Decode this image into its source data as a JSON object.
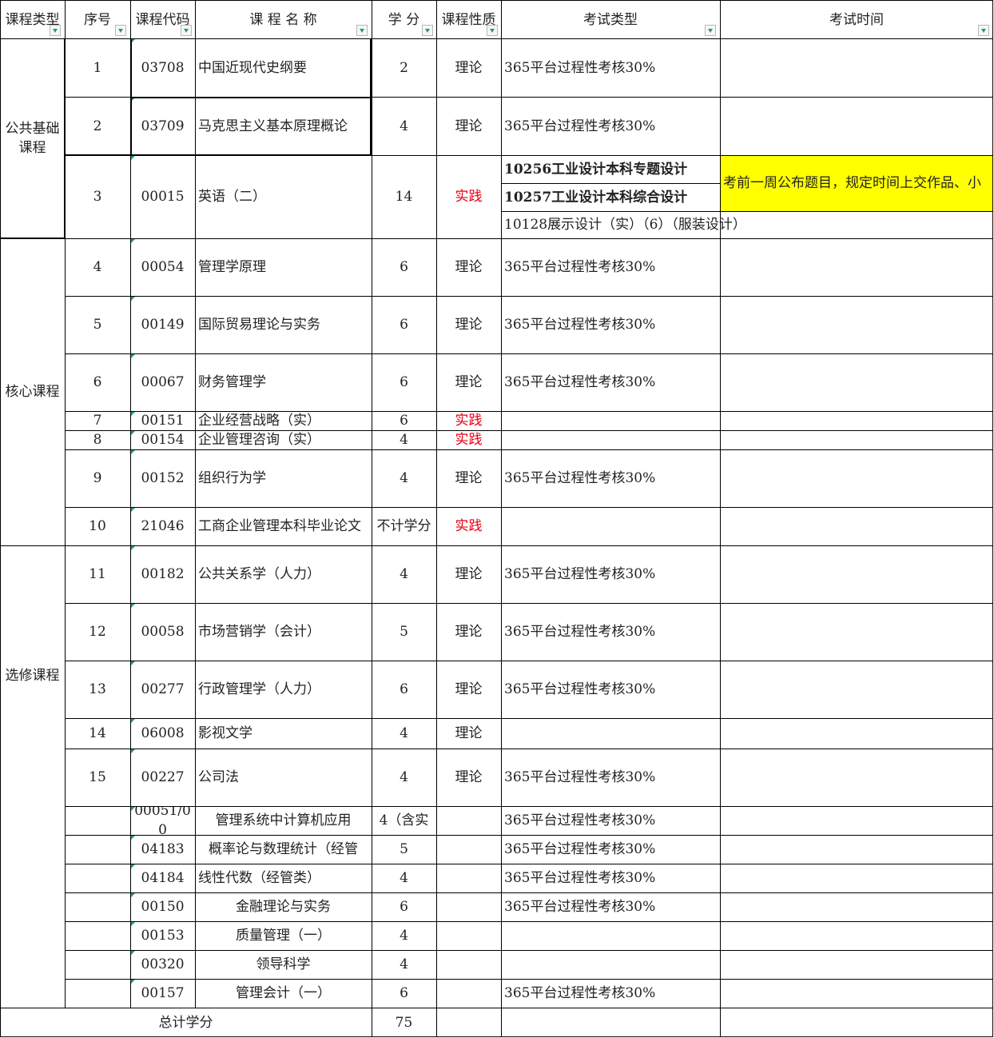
{
  "headers": [
    "课程类型",
    "序号",
    "课程代码",
    "课 程 名 称",
    "学 分",
    "课程性质",
    "考试类型",
    "考试时间"
  ],
  "groups": {
    "public": "公共基础课程",
    "core": "核心课程",
    "elective": "选修课程"
  },
  "rows": [
    {
      "no": "1",
      "code": "03708",
      "name": "中国近现代史纲要",
      "credit": "2",
      "nature": "理论",
      "exam": "365平台过程性考核30%"
    },
    {
      "no": "2",
      "code": "03709",
      "name": "马克思主义基本原理概论",
      "credit": "4",
      "nature": "理论",
      "exam": "365平台过程性考核30%"
    },
    {
      "no": "3",
      "code": "00015",
      "name": "英语（二）",
      "credit": "14",
      "nature": "实践",
      "exam": ""
    },
    {
      "no": "4",
      "code": "00054",
      "name": "管理学原理",
      "credit": "6",
      "nature": "理论",
      "exam": "365平台过程性考核30%"
    },
    {
      "no": "5",
      "code": "00149",
      "name": "国际贸易理论与实务",
      "credit": "6",
      "nature": "理论",
      "exam": "365平台过程性考核30%"
    },
    {
      "no": "6",
      "code": "00067",
      "name": "财务管理学",
      "credit": "6",
      "nature": "理论",
      "exam": "365平台过程性考核30%"
    },
    {
      "no": "7",
      "code": "00151",
      "name": "企业经营战略（实）",
      "credit": "6",
      "nature": "实践",
      "exam": ""
    },
    {
      "no": "8",
      "code": "00154",
      "name": "企业管理咨询（实）",
      "credit": "4",
      "nature": "实践",
      "exam": ""
    },
    {
      "no": "9",
      "code": "00152",
      "name": "组织行为学",
      "credit": "4",
      "nature": "理论",
      "exam": "365平台过程性考核30%"
    },
    {
      "no": "10",
      "code": "21046",
      "name": "工商企业管理本科毕业论文",
      "credit": "不计学分",
      "nature": "实践",
      "exam": ""
    },
    {
      "no": "11",
      "code": "00182",
      "name": "公共关系学（人力）",
      "credit": "4",
      "nature": "理论",
      "exam": "365平台过程性考核30%"
    },
    {
      "no": "12",
      "code": "00058",
      "name": "市场营销学（会计）",
      "credit": "5",
      "nature": "理论",
      "exam": "365平台过程性考核30%"
    },
    {
      "no": "13",
      "code": "00277",
      "name": "行政管理学（人力）",
      "credit": "6",
      "nature": "理论",
      "exam": "365平台过程性考核30%"
    },
    {
      "no": "14",
      "code": "06008",
      "name": "影视文学",
      "credit": "4",
      "nature": "理论",
      "exam": ""
    },
    {
      "no": "15",
      "code": "00227",
      "name": "公司法",
      "credit": "4",
      "nature": "理论",
      "exam": "365平台过程性考核30%"
    }
  ],
  "overlay": {
    "line1": "10256工业设计本科专题设计",
    "line2": "10257工业设计本科综合设计",
    "line3": "10128展示设计（实）（6）（服装设计）",
    "note": "考前一周公布题目，规定时间上交作品、小"
  },
  "extra_rows": [
    {
      "code": "00051/00",
      "name": "管理系统中计算机应用",
      "credit": "4（含实",
      "exam": "365平台过程性考核30%"
    },
    {
      "code": "04183",
      "name": "概率论与数理统计（经管",
      "credit": "5",
      "exam": "365平台过程性考核30%"
    },
    {
      "code": "04184",
      "name": "线性代数（经管类）",
      "credit": "4",
      "exam": "365平台过程性考核30%"
    },
    {
      "code": "00150",
      "name": "金融理论与实务",
      "credit": "6",
      "exam": "365平台过程性考核30%"
    },
    {
      "code": "00153",
      "name": "质量管理（一）",
      "credit": "4",
      "exam": ""
    },
    {
      "code": "00320",
      "name": "领导科学",
      "credit": "4",
      "exam": ""
    },
    {
      "code": "00157",
      "name": "管理会计（一）",
      "credit": "6",
      "exam": "365平台过程性考核30%"
    }
  ],
  "total": {
    "label": "总计学分",
    "value": "75"
  },
  "colors": {
    "practice_red": "#e60012",
    "highlight_yellow": "#ffff00",
    "filter_green": "#1e9e7a"
  }
}
